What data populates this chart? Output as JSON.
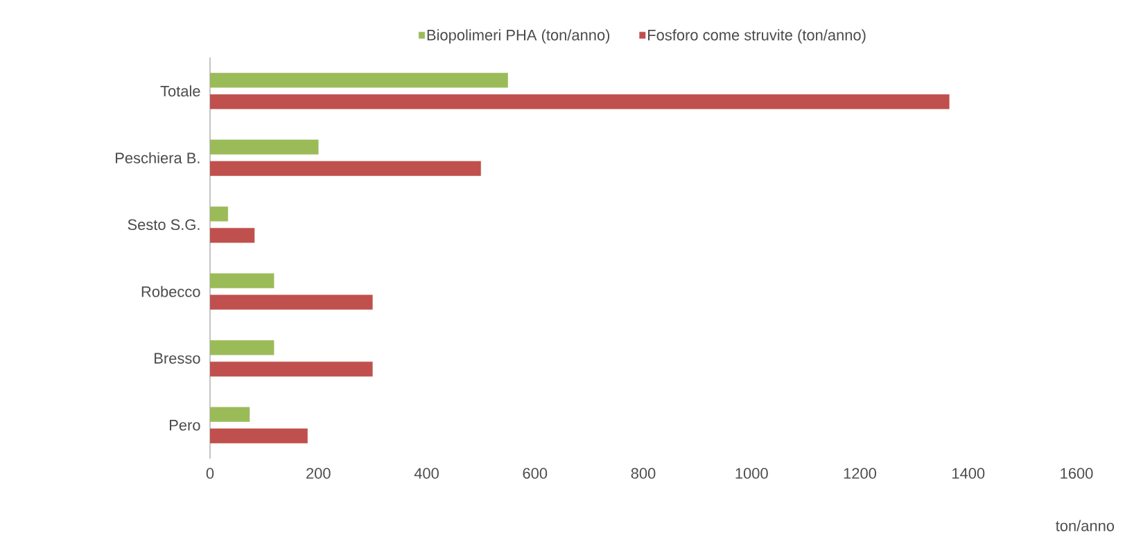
{
  "chart_data": {
    "type": "bar",
    "orientation": "horizontal",
    "categories": [
      "Totale",
      "Peschiera B.",
      "Sesto S.G.",
      "Robecco",
      "Bresso",
      "Pero"
    ],
    "series": [
      {
        "name": "Biopolimeri PHA (ton/anno)",
        "color": "#9bbb59",
        "values": [
          550,
          200,
          33,
          118,
          118,
          73
        ]
      },
      {
        "name": "Fosforo come struvite (ton/anno)",
        "color": "#c0504d",
        "values": [
          1365,
          500,
          82,
          300,
          300,
          180
        ]
      }
    ],
    "xlim": [
      0,
      1600
    ],
    "xticks": [
      0,
      200,
      400,
      600,
      800,
      1000,
      1200,
      1400,
      1600
    ],
    "xlabel": "ton/anno",
    "legend": "top",
    "grid": false
  }
}
